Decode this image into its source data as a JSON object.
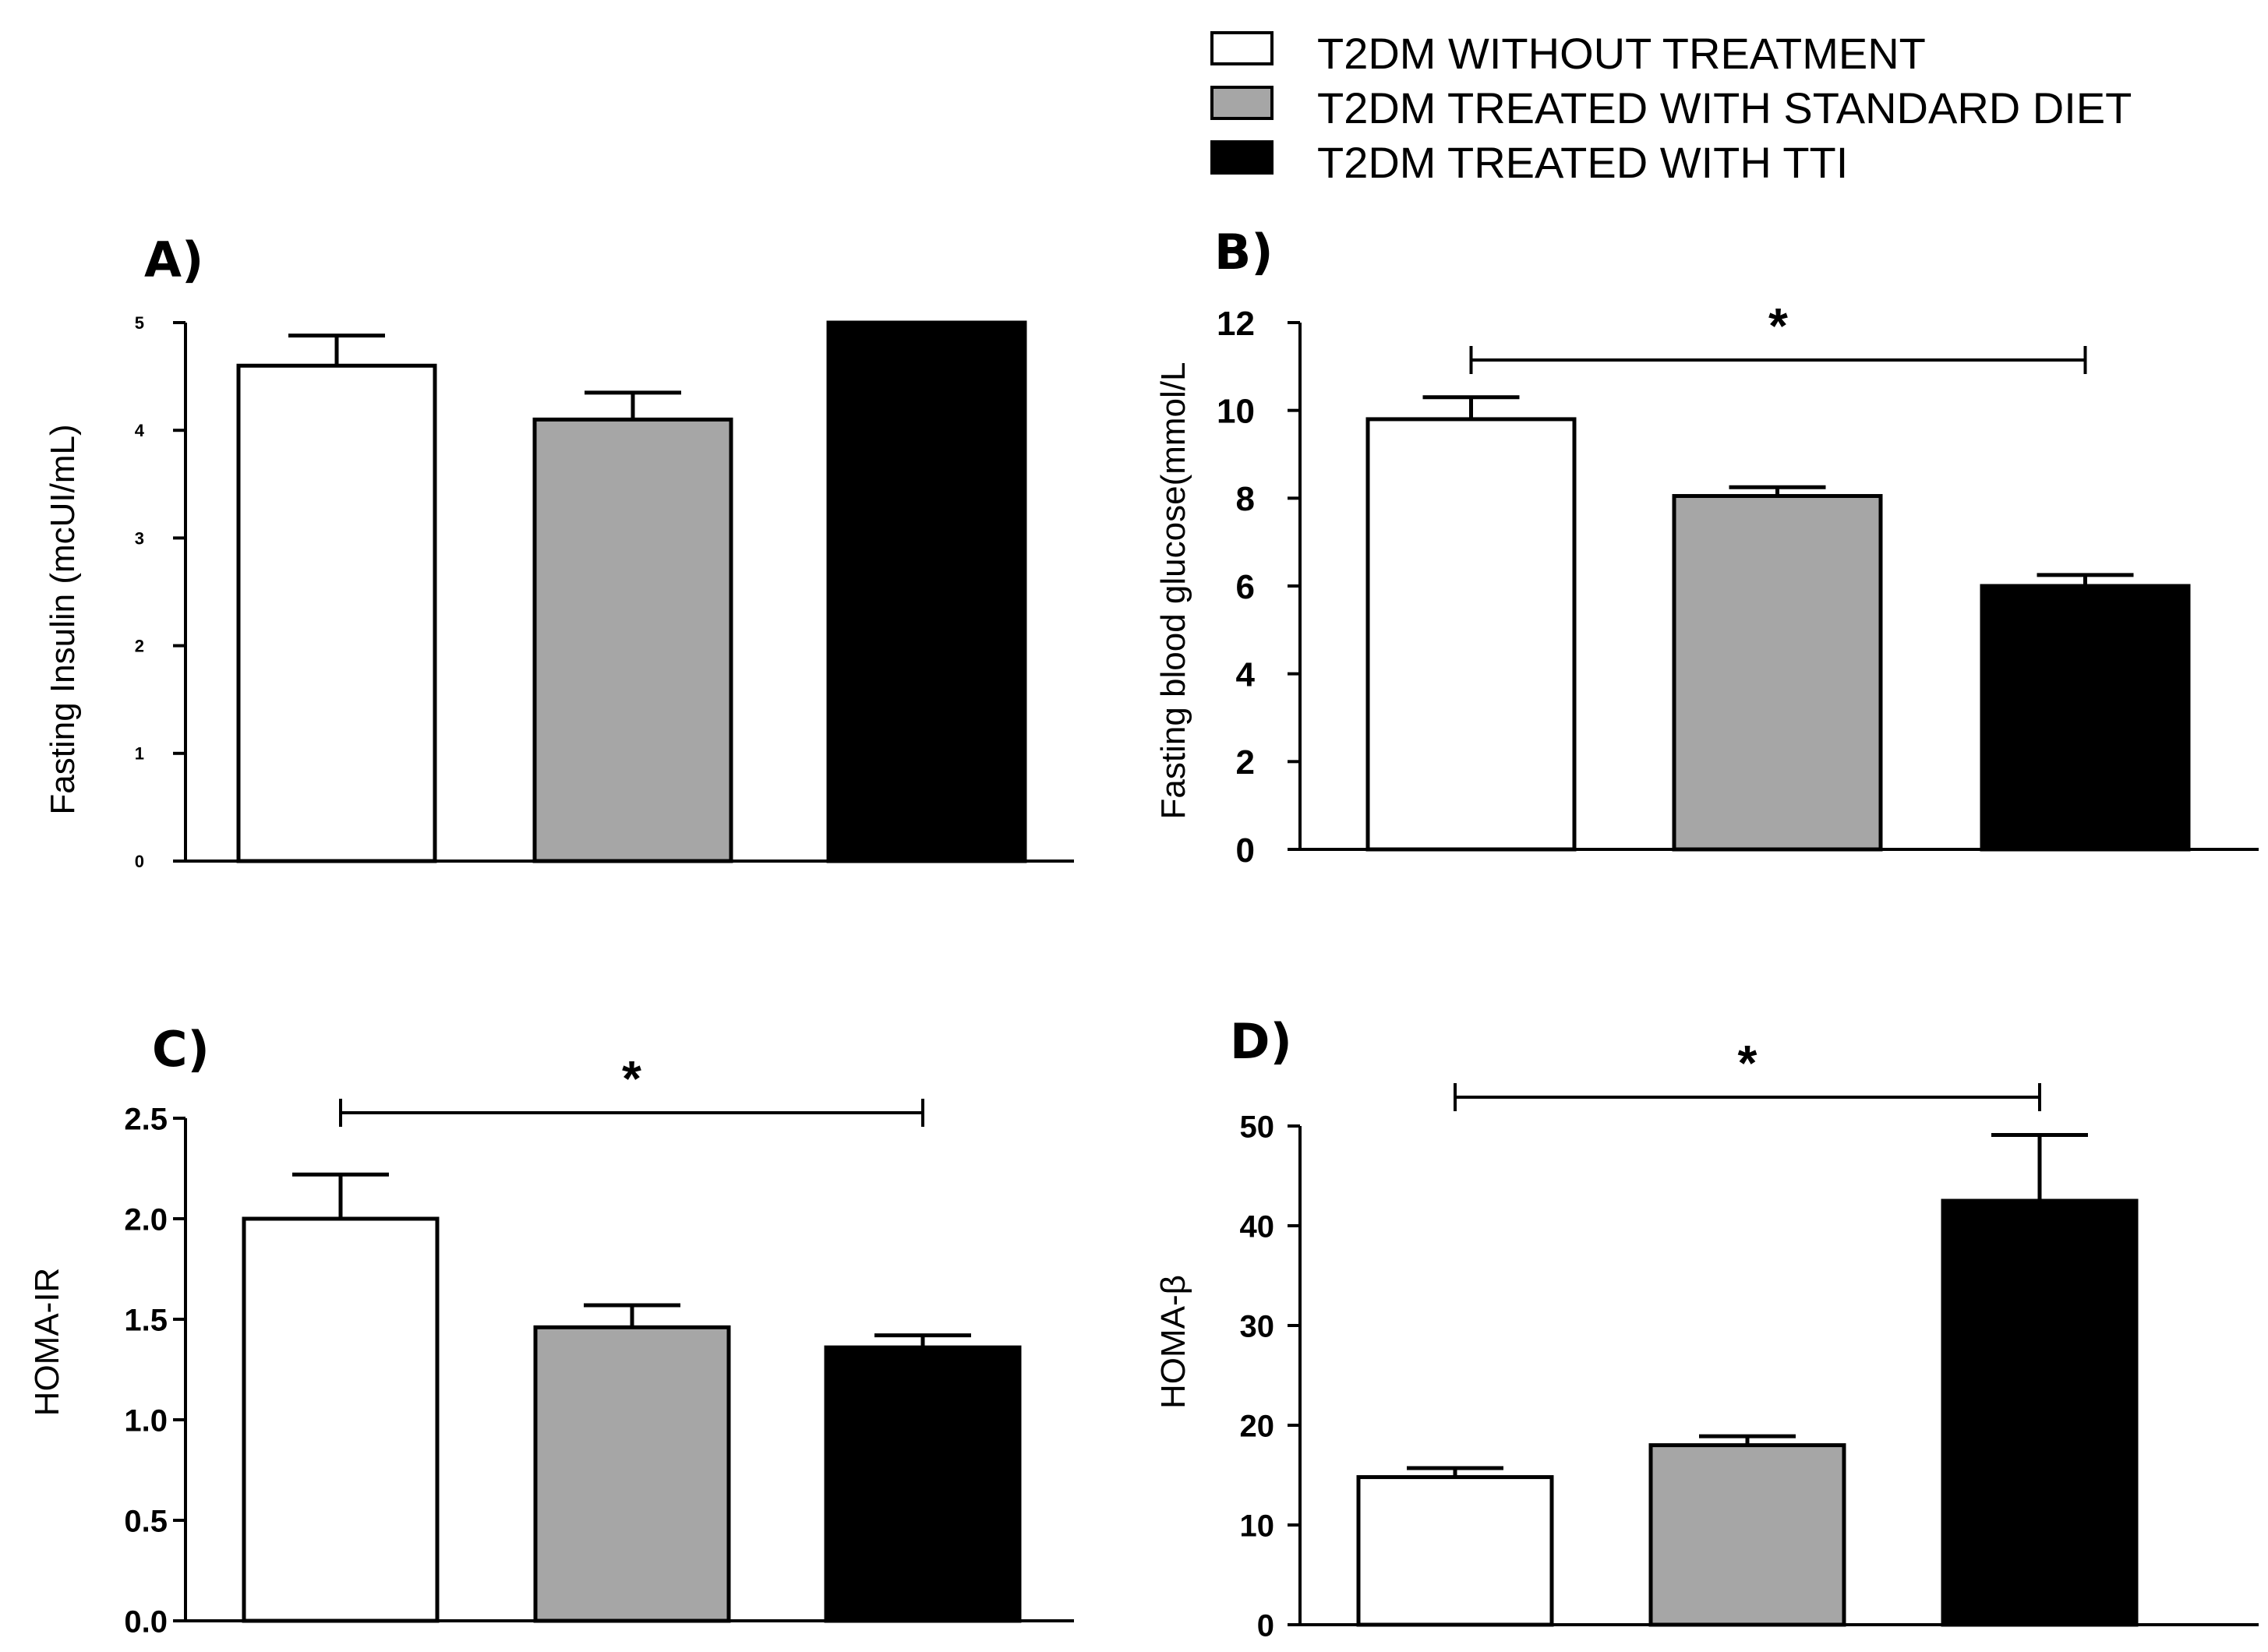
{
  "legend": {
    "items": [
      {
        "label": "T2DM WITHOUT TREATMENT",
        "color": "#ffffff"
      },
      {
        "label": "T2DM TREATED WITH STANDARD DIET",
        "color": "#a6a6a6"
      },
      {
        "label": "T2DM TREATED WITH TTI",
        "color": "#000000"
      }
    ]
  },
  "chart_data": [
    {
      "panel": "A)",
      "type": "bar",
      "categories": [
        "T2DM WITHOUT TREATMENT",
        "T2DM TREATED WITH STANDARD DIET",
        "T2DM TREATED WITH TTI"
      ],
      "values": [
        4.6,
        4.1,
        5.0
      ],
      "errors": [
        0.28,
        0.25,
        0
      ],
      "ylabel": "Fasting Insulin (mcUI/mL)",
      "ylim": [
        0,
        5
      ],
      "yticks": [
        "0",
        "1",
        "2",
        "3",
        "4",
        "5"
      ],
      "significance": null
    },
    {
      "panel": "B)",
      "type": "bar",
      "categories": [
        "T2DM WITHOUT TREATMENT",
        "T2DM TREATED WITH STANDARD DIET",
        "T2DM TREATED WITH TTI"
      ],
      "values": [
        9.8,
        8.05,
        6.0
      ],
      "errors": [
        0.5,
        0.2,
        0.25
      ],
      "ylabel": "Fasting blood glucose(mmol/L",
      "ylim": [
        0,
        12
      ],
      "yticks": [
        "0",
        "2",
        "4",
        "6",
        "8",
        "10",
        "12"
      ],
      "significance": {
        "from": 0,
        "to": 2,
        "label": "*"
      }
    },
    {
      "panel": "C)",
      "type": "bar",
      "categories": [
        "T2DM WITHOUT TREATMENT",
        "T2DM TREATED WITH STANDARD DIET",
        "T2DM TREATED WITH TTI"
      ],
      "values": [
        2.0,
        1.46,
        1.36
      ],
      "errors": [
        0.22,
        0.11,
        0.06
      ],
      "ylabel": "HOMA-IR",
      "ylim": [
        0,
        2.5
      ],
      "yticks": [
        "0.0",
        "0.5",
        "1.0",
        "1.5",
        "2.0",
        "2.5"
      ],
      "significance": {
        "from": 0,
        "to": 2,
        "label": "*"
      }
    },
    {
      "panel": "D)",
      "type": "bar",
      "categories": [
        "T2DM WITHOUT TREATMENT",
        "T2DM TREATED WITH STANDARD DIET",
        "T2DM TREATED WITH TTI"
      ],
      "values": [
        14.8,
        18.0,
        42.5
      ],
      "errors": [
        0.9,
        0.9,
        6.6
      ],
      "ylabel": "HOMA-β",
      "ylim": [
        0,
        50
      ],
      "yticks": [
        "0",
        "10",
        "20",
        "30",
        "40",
        "50"
      ],
      "significance": {
        "from": 0,
        "to": 2,
        "label": "*"
      }
    }
  ]
}
